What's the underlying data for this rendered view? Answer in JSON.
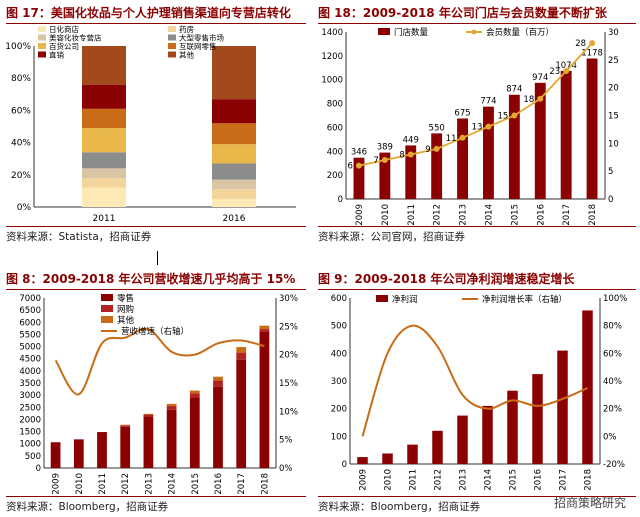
{
  "chart_data": [
    {
      "id": "p1",
      "type": "bar",
      "title": "图 17：美国化妆品与个人护理销售渠道向专营店转化",
      "source": "资料来源：Statista，招商证券",
      "categories": [
        "2011",
        "2016"
      ],
      "yticks": [
        "0%",
        "20%",
        "40%",
        "60%",
        "80%",
        "100%"
      ],
      "ylim": [
        0,
        100
      ],
      "stacked": true,
      "series": [
        {
          "name": "日化商店",
          "color": "#FDE9B5",
          "values": [
            12,
            5
          ]
        },
        {
          "name": "药房",
          "color": "#F3D59C",
          "values": [
            6,
            6
          ]
        },
        {
          "name": "美容化妆专营店",
          "color": "#D9C4A4",
          "values": [
            6,
            6
          ]
        },
        {
          "name": "大型零售市场",
          "color": "#8C8C8C",
          "values": [
            10,
            10
          ]
        },
        {
          "name": "百货公司",
          "color": "#E8B84A",
          "values": [
            15,
            12
          ]
        },
        {
          "name": "互联网零售",
          "color": "#C96B17",
          "values": [
            12,
            13
          ]
        },
        {
          "name": "直销",
          "color": "#8B0000",
          "values": [
            15,
            15
          ]
        },
        {
          "name": "其他",
          "color": "#A34A1D",
          "values": [
            24,
            33
          ]
        }
      ]
    },
    {
      "id": "p2",
      "type": "bar",
      "title": "图 18：2009-2018 年公司门店与会员数量不断扩张",
      "source": "资料来源：公司官网，招商证券",
      "categories": [
        "2009",
        "2010",
        "2011",
        "2012",
        "2013",
        "2014",
        "2015",
        "2016",
        "2017",
        "2018"
      ],
      "series": [
        {
          "name": "门店数量",
          "color": "#8B0000",
          "axis": "left",
          "values": [
            346,
            389,
            449,
            550,
            675,
            774,
            874,
            974,
            1074,
            1178
          ],
          "labels": [
            "346",
            "389",
            "449",
            "550",
            "675",
            "774",
            "874",
            "974",
            "1074",
            "1178"
          ]
        },
        {
          "name": "会员数量（百万）",
          "color": "#E3A830",
          "axis": "right",
          "type": "line",
          "values": [
            6,
            7,
            8,
            9,
            11,
            13,
            15,
            18,
            23,
            28
          ],
          "labels": [
            "6",
            "7",
            "8",
            "9",
            "11",
            "13",
            "15",
            "18",
            "23",
            "28"
          ]
        }
      ],
      "left_axis": {
        "ticks": [
          "0",
          "200",
          "400",
          "600",
          "800",
          "1000",
          "1200",
          "1400"
        ],
        "range": [
          0,
          1400
        ]
      },
      "right_axis": {
        "ticks": [
          "0",
          "5",
          "10",
          "15",
          "20",
          "25",
          "30"
        ],
        "range": [
          0,
          30
        ]
      }
    },
    {
      "id": "p3",
      "type": "bar",
      "title": "图 8：2009-2018 年公司营收增速几乎均高于 15%",
      "source": "资料来源：Bloomberg，招商证券",
      "categories": [
        "2009",
        "2010",
        "2011",
        "2012",
        "2013",
        "2014",
        "2015",
        "2016",
        "2017",
        "2018"
      ],
      "stacked": true,
      "series": [
        {
          "name": "零售",
          "color": "#8B0000",
          "axis": "left",
          "values": [
            1060,
            1180,
            1480,
            1700,
            2100,
            2400,
            2900,
            3350,
            4450,
            5600
          ]
        },
        {
          "name": "网购",
          "color": "#B22222",
          "axis": "left",
          "values": [
            0,
            0,
            0,
            60,
            100,
            150,
            180,
            250,
            300,
            120
          ]
        },
        {
          "name": "其他",
          "color": "#C96B17",
          "axis": "left",
          "values": [
            0,
            0,
            0,
            20,
            30,
            90,
            110,
            160,
            230,
            140
          ]
        },
        {
          "name": "营收增速（右轴）",
          "color": "#C96B17",
          "axis": "right",
          "type": "line",
          "values": [
            19,
            13,
            22,
            23,
            24.5,
            20.5,
            20,
            22,
            22.5,
            21.5
          ]
        }
      ],
      "left_axis": {
        "ticks": [
          "0",
          "500",
          "1000",
          "1500",
          "2000",
          "2500",
          "3000",
          "3500",
          "4000",
          "4500",
          "5000",
          "5500",
          "6000",
          "6500",
          "7000"
        ],
        "range": [
          0,
          7000
        ]
      },
      "right_axis": {
        "ticks": [
          "0%",
          "5%",
          "10%",
          "15%",
          "20%",
          "25%",
          "30%"
        ],
        "range": [
          0,
          30
        ]
      }
    },
    {
      "id": "p4",
      "type": "bar",
      "title": "图 9：2009-2018 年公司净利润增速稳定增长",
      "source": "资料来源：Bloomberg，招商证券",
      "categories": [
        "2009",
        "2010",
        "2011",
        "2012",
        "2013",
        "2014",
        "2015",
        "2016",
        "2017",
        "2018"
      ],
      "series": [
        {
          "name": "净利润",
          "color": "#8B0000",
          "axis": "left",
          "values": [
            25,
            38,
            70,
            120,
            175,
            210,
            265,
            325,
            410,
            555
          ]
        },
        {
          "name": "净利润增长率（右轴）",
          "color": "#C96B17",
          "axis": "right",
          "type": "line",
          "values": [
            0,
            60,
            80,
            65,
            30,
            20,
            26,
            22,
            27,
            35
          ]
        }
      ],
      "left_axis": {
        "ticks": [
          "0",
          "100",
          "200",
          "300",
          "400",
          "500",
          "600"
        ],
        "range": [
          0,
          600
        ]
      },
      "right_axis": {
        "ticks": [
          "-20%",
          "0%",
          "20%",
          "40%",
          "60%",
          "80%",
          "100%"
        ],
        "range": [
          -20,
          100
        ]
      }
    }
  ],
  "watermark": "招商策略研究"
}
